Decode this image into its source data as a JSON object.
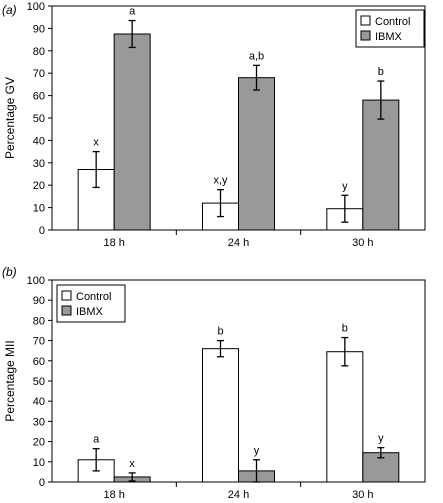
{
  "chart_data": [
    {
      "type": "bar",
      "panel_label": "(a)",
      "ylabel": "Percentage GV",
      "categories": [
        "18 h",
        "24 h",
        "30 h"
      ],
      "ylim": [
        0,
        100
      ],
      "yticks": [
        0,
        10,
        20,
        30,
        40,
        50,
        60,
        70,
        80,
        90,
        100
      ],
      "legend_position": "top-right",
      "series": [
        {
          "name": "Control",
          "color": "#ffffff",
          "values": [
            27,
            12,
            9.5
          ],
          "errors": [
            8,
            6,
            6
          ],
          "labels": [
            "x",
            "x,y",
            "y"
          ]
        },
        {
          "name": "IBMX",
          "color": "#999999",
          "values": [
            87.5,
            68,
            58
          ],
          "errors": [
            6,
            5.5,
            8.5
          ],
          "labels": [
            "a",
            "a,b",
            "b"
          ]
        }
      ]
    },
    {
      "type": "bar",
      "panel_label": "(b)",
      "ylabel": "Percentage MII",
      "categories": [
        "18 h",
        "24 h",
        "30 h"
      ],
      "ylim": [
        0,
        100
      ],
      "yticks": [
        0,
        10,
        20,
        30,
        40,
        50,
        60,
        70,
        80,
        90,
        100
      ],
      "legend_position": "top-left",
      "series": [
        {
          "name": "Control",
          "color": "#ffffff",
          "values": [
            11,
            66,
            64.5
          ],
          "errors": [
            5.5,
            4,
            7
          ],
          "labels": [
            "a",
            "b",
            "b"
          ]
        },
        {
          "name": "IBMX",
          "color": "#999999",
          "values": [
            2.5,
            5.5,
            14.5
          ],
          "errors": [
            2,
            5.5,
            2.5
          ],
          "labels": [
            "x",
            "y",
            "y"
          ]
        }
      ]
    }
  ]
}
